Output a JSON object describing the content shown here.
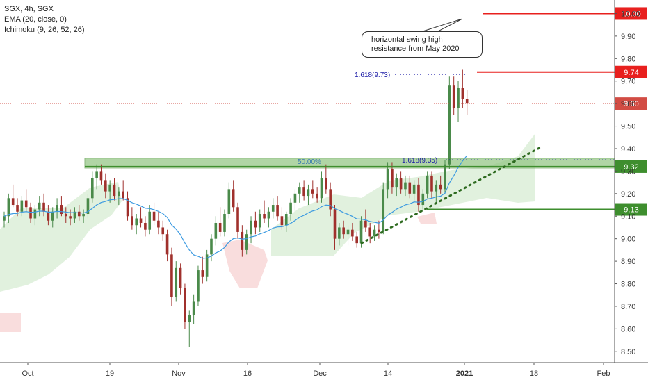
{
  "legend": {
    "symbol": "SGX, 4h, SGX",
    "ema": "EMA (20, close, 0)",
    "ichimoku": "Ichimoku (9, 26, 52, 26)"
  },
  "callout": {
    "line1": "horizontal swing high",
    "line2": "resistance from May 2020"
  },
  "colors": {
    "up": "#4a8a4a",
    "down": "#a0302c",
    "ema": "#3b9ae1",
    "cloud_green": "#c8e6c3",
    "cloud_red": "#f5c7c7",
    "resistance": "#e8201e",
    "support": "#3e8e2e",
    "zone": "#8fc47f",
    "fib": "#1a1aa6",
    "trend": "#2e6b20"
  },
  "chart_data": {
    "type": "candlestick",
    "symbol": "SGX",
    "timeframe": "4h",
    "ylim": [
      8.45,
      10.06
    ],
    "y_ticks": [
      "8.50",
      "8.60",
      "8.70",
      "8.80",
      "8.90",
      "9.00",
      "9.10",
      "9.20",
      "9.30",
      "9.40",
      "9.50",
      "9.60",
      "9.70",
      "9.80",
      "9.90",
      "10.00"
    ],
    "x_ticks": [
      "Oct",
      "19",
      "Nov",
      "16",
      "Dec",
      "14",
      "2021",
      "18",
      "Feb"
    ],
    "price_labels": [
      {
        "value": 10.0,
        "text": "10.00",
        "color": "#e8201e"
      },
      {
        "value": 9.74,
        "text": "9.74",
        "color": "#e8201e"
      },
      {
        "value": 9.6,
        "text": "9.60",
        "color": "#d24c44"
      },
      {
        "value": 9.32,
        "text": "9.32",
        "color": "#3e8e2e"
      },
      {
        "value": 9.13,
        "text": "9.13",
        "color": "#3e8e2e"
      }
    ],
    "annotations": {
      "zone_label": "50.00%",
      "fib_high": "1.618(9.73)",
      "fib_low": "1.618(9.35)"
    },
    "resistance_levels": [
      10.0,
      9.74
    ],
    "support_levels": [
      9.32,
      9.13
    ],
    "resistance_zone": [
      9.32,
      9.345
    ],
    "current_price": 9.6,
    "candles": [
      [
        9.08,
        9.12,
        9.05,
        9.1
      ],
      [
        9.1,
        9.2,
        9.07,
        9.18
      ],
      [
        9.18,
        9.24,
        9.14,
        9.15
      ],
      [
        9.15,
        9.18,
        9.1,
        9.12
      ],
      [
        9.12,
        9.19,
        9.1,
        9.17
      ],
      [
        9.17,
        9.22,
        9.12,
        9.14
      ],
      [
        9.14,
        9.16,
        9.07,
        9.09
      ],
      [
        9.09,
        9.15,
        9.06,
        9.13
      ],
      [
        9.13,
        9.19,
        9.1,
        9.16
      ],
      [
        9.16,
        9.2,
        9.1,
        9.12
      ],
      [
        9.12,
        9.15,
        9.06,
        9.08
      ],
      [
        9.08,
        9.14,
        9.05,
        9.12
      ],
      [
        9.12,
        9.18,
        9.09,
        9.15
      ],
      [
        9.15,
        9.19,
        9.1,
        9.11
      ],
      [
        9.11,
        9.14,
        9.07,
        9.1
      ],
      [
        9.1,
        9.13,
        9.06,
        9.09
      ],
      [
        9.09,
        9.14,
        9.07,
        9.12
      ],
      [
        9.12,
        9.15,
        9.08,
        9.1
      ],
      [
        9.1,
        9.13,
        9.07,
        9.11
      ],
      [
        9.11,
        9.2,
        9.09,
        9.18
      ],
      [
        9.18,
        9.3,
        9.16,
        9.27
      ],
      [
        9.27,
        9.33,
        9.22,
        9.3
      ],
      [
        9.3,
        9.33,
        9.24,
        9.26
      ],
      [
        9.26,
        9.29,
        9.18,
        9.21
      ],
      [
        9.21,
        9.26,
        9.16,
        9.24
      ],
      [
        9.24,
        9.27,
        9.17,
        9.19
      ],
      [
        9.19,
        9.23,
        9.15,
        9.21
      ],
      [
        9.21,
        9.26,
        9.17,
        9.18
      ],
      [
        9.18,
        9.21,
        9.08,
        9.1
      ],
      [
        9.1,
        9.14,
        9.04,
        9.06
      ],
      [
        9.06,
        9.11,
        9.02,
        9.09
      ],
      [
        9.09,
        9.14,
        9.05,
        9.07
      ],
      [
        9.07,
        9.1,
        9.01,
        9.04
      ],
      [
        9.04,
        9.15,
        9.02,
        9.12
      ],
      [
        9.12,
        9.16,
        9.06,
        9.08
      ],
      [
        9.08,
        9.12,
        9.02,
        9.05
      ],
      [
        9.05,
        9.08,
        8.99,
        9.02
      ],
      [
        9.02,
        9.04,
        8.9,
        8.93
      ],
      [
        8.93,
        8.96,
        8.7,
        8.74
      ],
      [
        8.74,
        8.9,
        8.72,
        8.87
      ],
      [
        8.87,
        8.89,
        8.75,
        8.78
      ],
      [
        8.78,
        8.8,
        8.6,
        8.63
      ],
      [
        8.63,
        8.68,
        8.52,
        8.66
      ],
      [
        8.66,
        8.75,
        8.62,
        8.72
      ],
      [
        8.72,
        8.88,
        8.7,
        8.86
      ],
      [
        8.86,
        8.92,
        8.8,
        8.83
      ],
      [
        8.83,
        8.95,
        8.81,
        8.93
      ],
      [
        8.93,
        9.02,
        8.9,
        9.0
      ],
      [
        9.0,
        9.1,
        8.97,
        9.07
      ],
      [
        9.07,
        9.14,
        9.01,
        9.03
      ],
      [
        9.03,
        9.13,
        9.01,
        9.11
      ],
      [
        9.11,
        9.25,
        9.09,
        9.22
      ],
      [
        9.22,
        9.26,
        9.12,
        9.14
      ],
      [
        9.14,
        9.16,
        9.0,
        9.03
      ],
      [
        9.03,
        9.06,
        8.92,
        8.95
      ],
      [
        8.95,
        9.04,
        8.93,
        9.02
      ],
      [
        9.02,
        9.1,
        8.98,
        9.08
      ],
      [
        9.08,
        9.12,
        9.02,
        9.05
      ],
      [
        9.05,
        9.13,
        9.03,
        9.11
      ],
      [
        9.11,
        9.17,
        9.07,
        9.09
      ],
      [
        9.09,
        9.14,
        9.05,
        9.12
      ],
      [
        9.12,
        9.18,
        9.09,
        9.15
      ],
      [
        9.15,
        9.19,
        9.08,
        9.1
      ],
      [
        9.1,
        9.14,
        9.04,
        9.06
      ],
      [
        9.06,
        9.12,
        9.03,
        9.11
      ],
      [
        9.11,
        9.18,
        9.08,
        9.16
      ],
      [
        9.16,
        9.22,
        9.12,
        9.2
      ],
      [
        9.2,
        9.25,
        9.16,
        9.23
      ],
      [
        9.23,
        9.26,
        9.17,
        9.19
      ],
      [
        9.19,
        9.24,
        9.15,
        9.22
      ],
      [
        9.22,
        9.26,
        9.18,
        9.2
      ],
      [
        9.2,
        9.23,
        9.16,
        9.18
      ],
      [
        9.18,
        9.3,
        9.16,
        9.27
      ],
      [
        9.27,
        9.33,
        9.2,
        9.22
      ],
      [
        9.22,
        9.25,
        9.1,
        9.13
      ],
      [
        9.13,
        9.15,
        8.95,
        9.0
      ],
      [
        9.0,
        9.07,
        8.97,
        9.05
      ],
      [
        9.05,
        9.08,
        9.0,
        9.02
      ],
      [
        9.02,
        9.06,
        8.97,
        9.04
      ],
      [
        9.04,
        9.07,
        8.99,
        9.01
      ],
      [
        9.01,
        9.03,
        8.96,
        8.98
      ],
      [
        8.98,
        9.1,
        8.96,
        9.08
      ],
      [
        9.08,
        9.13,
        9.03,
        9.05
      ],
      [
        9.05,
        9.07,
        8.98,
        9.01
      ],
      [
        9.01,
        9.06,
        8.99,
        9.04
      ],
      [
        9.04,
        9.08,
        9.0,
        9.03
      ],
      [
        9.03,
        9.25,
        9.02,
        9.22
      ],
      [
        9.22,
        9.34,
        9.18,
        9.31
      ],
      [
        9.31,
        9.34,
        9.2,
        9.23
      ],
      [
        9.23,
        9.29,
        9.19,
        9.27
      ],
      [
        9.27,
        9.3,
        9.2,
        9.22
      ],
      [
        9.22,
        9.28,
        9.19,
        9.25
      ],
      [
        9.25,
        9.28,
        9.18,
        9.2
      ],
      [
        9.2,
        9.26,
        9.17,
        9.24
      ],
      [
        9.24,
        9.27,
        9.12,
        9.15
      ],
      [
        9.15,
        9.22,
        9.13,
        9.2
      ],
      [
        9.2,
        9.3,
        9.18,
        9.28
      ],
      [
        9.28,
        9.3,
        9.18,
        9.21
      ],
      [
        9.21,
        9.26,
        9.16,
        9.24
      ],
      [
        9.24,
        9.28,
        9.2,
        9.22
      ],
      [
        9.22,
        9.35,
        9.2,
        9.33
      ],
      [
        9.33,
        9.72,
        9.31,
        9.68
      ],
      [
        9.68,
        9.72,
        9.55,
        9.58
      ],
      [
        9.58,
        9.7,
        9.52,
        9.67
      ],
      [
        9.67,
        9.75,
        9.58,
        9.62
      ],
      [
        9.62,
        9.66,
        9.55,
        9.6
      ]
    ]
  }
}
